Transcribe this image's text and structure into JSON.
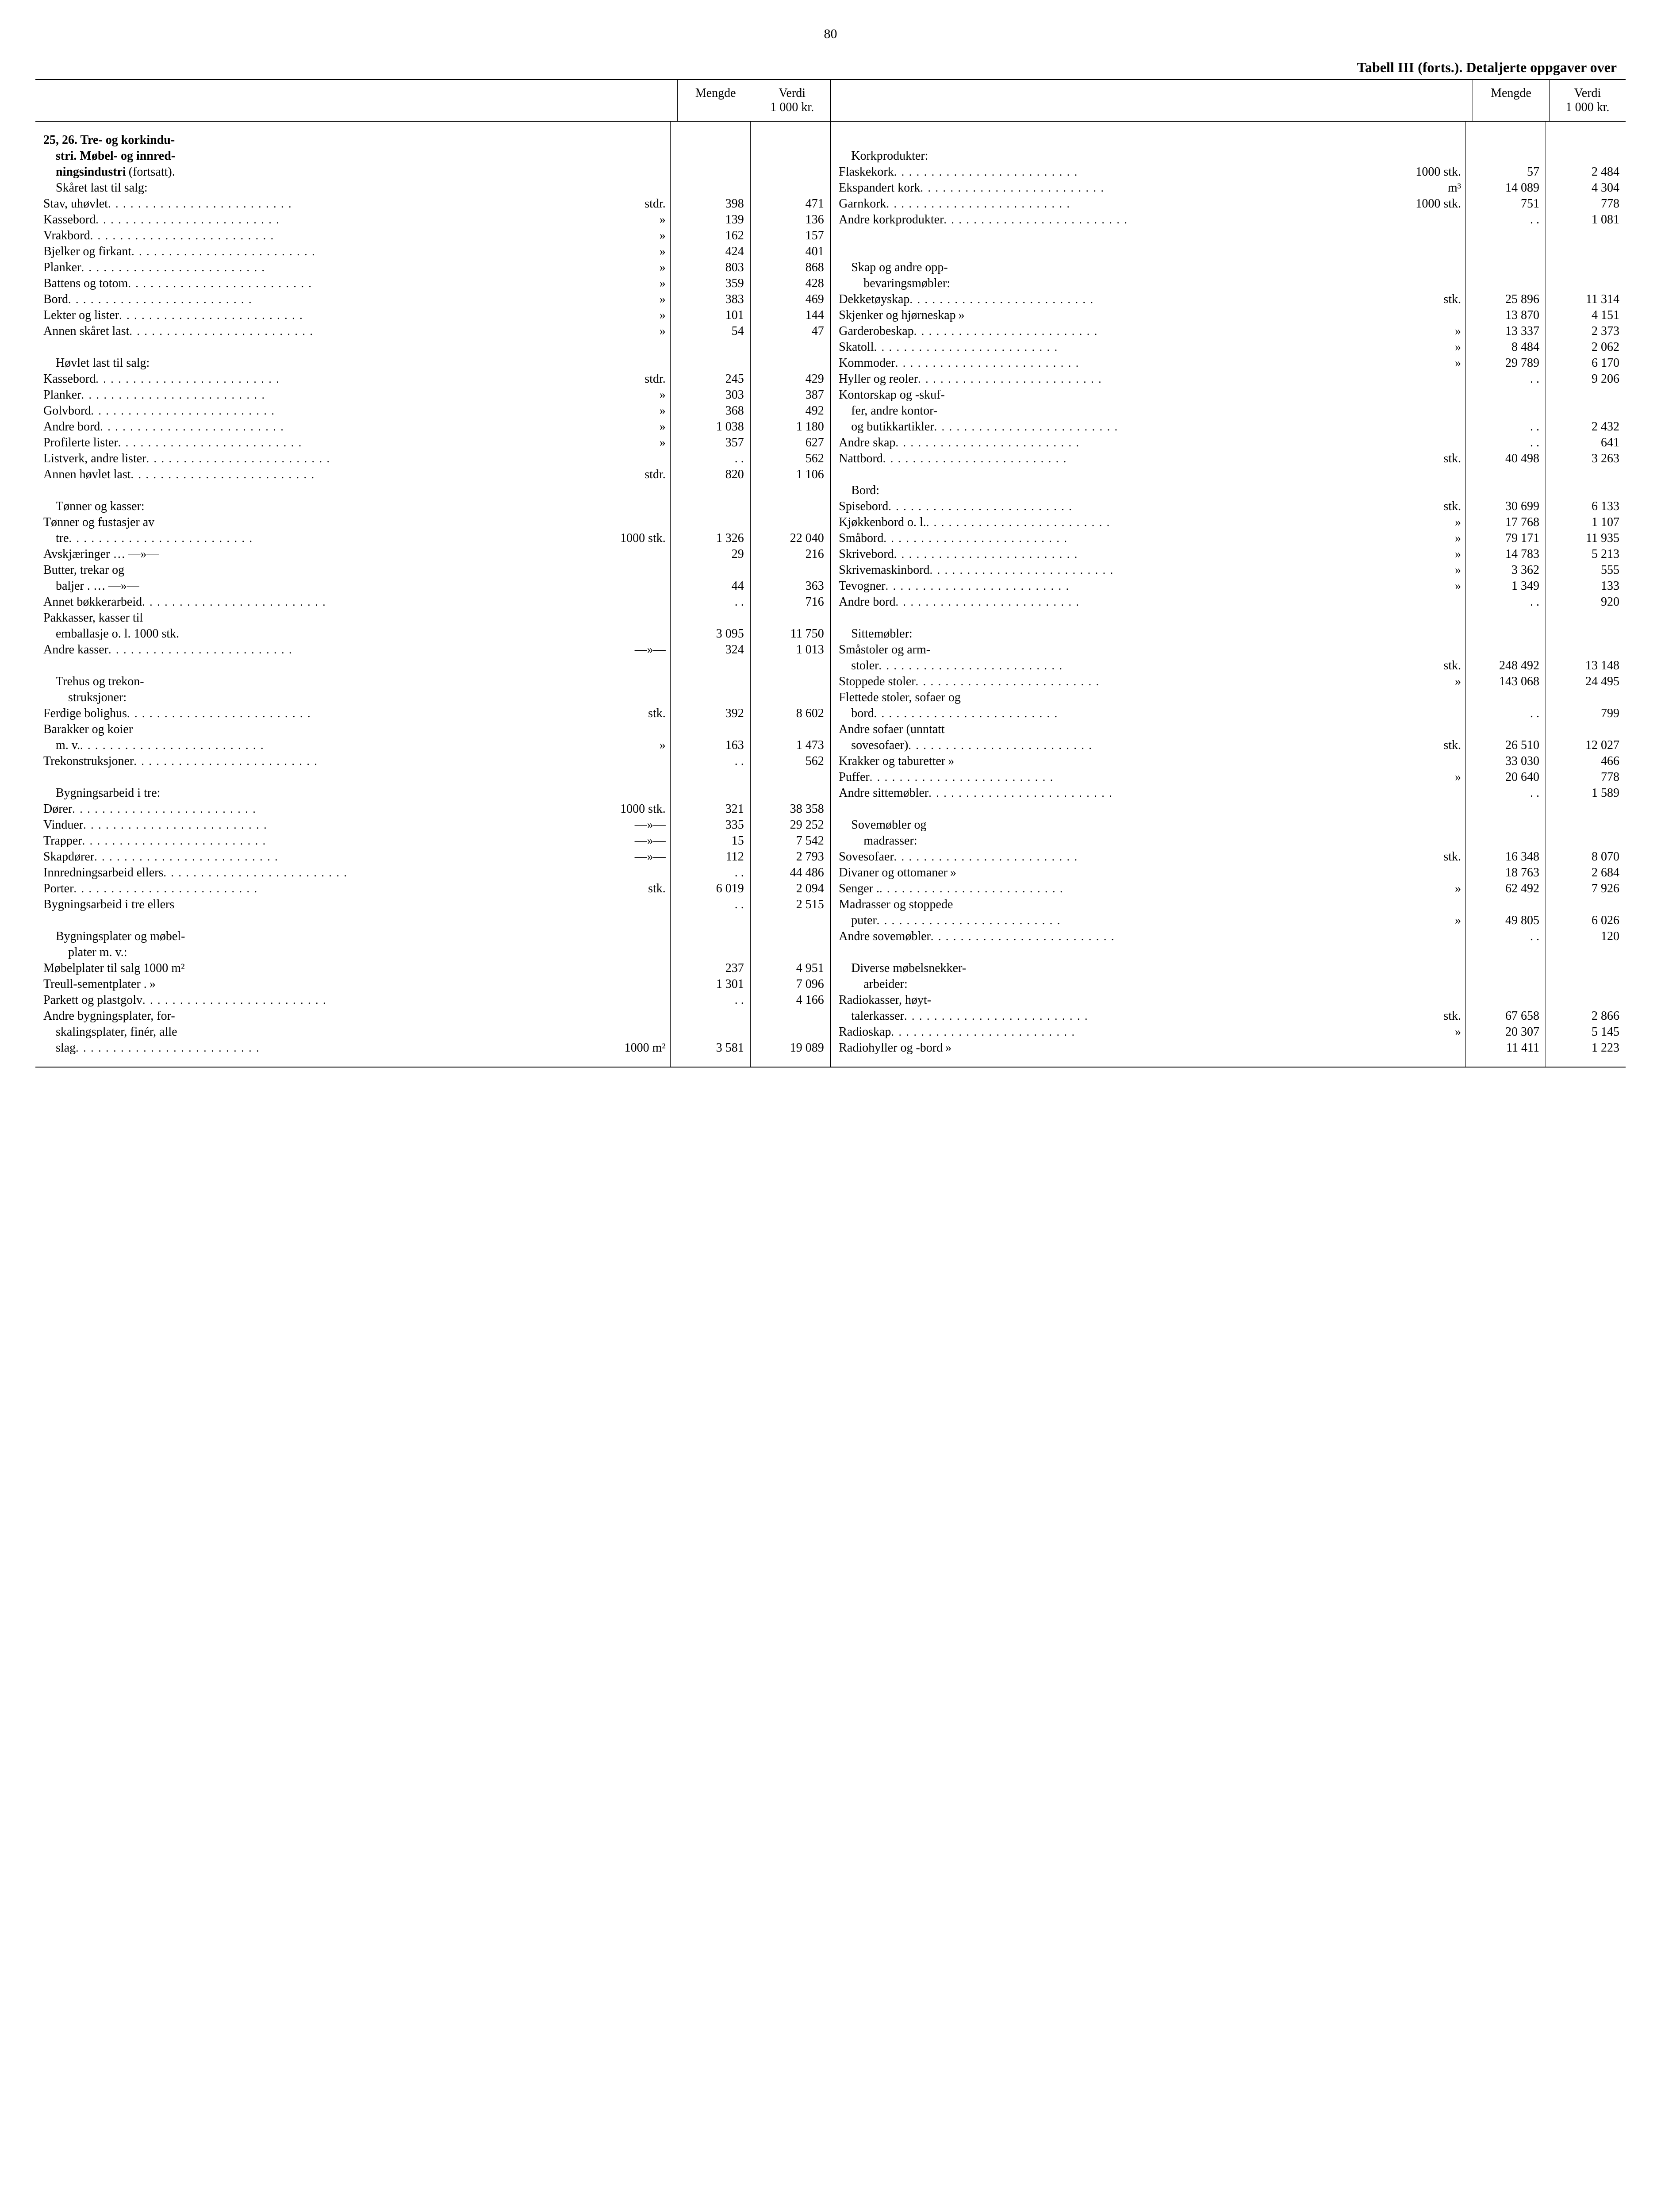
{
  "page_number": "80",
  "title": "Tabell III (forts.). Detaljerte oppgaver over",
  "headers": {
    "qty": "Mengde",
    "val_l1": "Verdi",
    "val_l2": "1 000 kr."
  },
  "left": [
    {
      "type": "head",
      "label": "25, 26. Tre- og korkindu-"
    },
    {
      "type": "head",
      "indent": 1,
      "label": "stri. Møbel- og innred-"
    },
    {
      "type": "head",
      "indent": 1,
      "label": "ningsindustri",
      "unit": "(fortsatt)."
    },
    {
      "indent": 1,
      "label": "Skåret last til salg:"
    },
    {
      "label": "Stav, uhøvlet",
      "dots": true,
      "unit": "stdr.",
      "q": "398",
      "v": "471"
    },
    {
      "label": "Kassebord",
      "dots": true,
      "unit": "»",
      "q": "139",
      "v": "136"
    },
    {
      "label": "Vrakbord",
      "dots": true,
      "unit": "»",
      "q": "162",
      "v": "157"
    },
    {
      "label": "Bjelker og firkant",
      "dots": true,
      "unit": "»",
      "q": "424",
      "v": "401"
    },
    {
      "label": "Planker",
      "dots": true,
      "unit": "»",
      "q": "803",
      "v": "868"
    },
    {
      "label": "Battens og totom",
      "dots": true,
      "unit": "»",
      "q": "359",
      "v": "428"
    },
    {
      "label": "Bord",
      "dots": true,
      "unit": "»",
      "q": "383",
      "v": "469"
    },
    {
      "label": "Lekter og lister",
      "dots": true,
      "unit": "»",
      "q": "101",
      "v": "144"
    },
    {
      "label": "Annen skåret last",
      "dots": true,
      "unit": "»",
      "q": "54",
      "v": "47"
    },
    {
      "type": "blank"
    },
    {
      "indent": 1,
      "label": "Høvlet last til salg:"
    },
    {
      "label": "Kassebord",
      "dots": true,
      "unit": "stdr.",
      "q": "245",
      "v": "429"
    },
    {
      "label": "Planker",
      "dots": true,
      "unit": "»",
      "q": "303",
      "v": "387"
    },
    {
      "label": "Golvbord",
      "dots": true,
      "unit": "»",
      "q": "368",
      "v": "492"
    },
    {
      "label": "Andre bord",
      "dots": true,
      "unit": "»",
      "q": "1 038",
      "v": "1 180"
    },
    {
      "label": "Profilerte lister",
      "dots": true,
      "unit": "»",
      "q": "357",
      "v": "627"
    },
    {
      "label": "Listverk, andre lister",
      "dots": true,
      "q": ". .",
      "v": "562"
    },
    {
      "label": "Annen høvlet last",
      "dots": true,
      "unit": "stdr.",
      "q": "820",
      "v": "1 106"
    },
    {
      "type": "blank"
    },
    {
      "indent": 1,
      "label": "Tønner og kasser:"
    },
    {
      "label": "Tønner og fustasjer av"
    },
    {
      "indent": 1,
      "label": "tre",
      "dots": true,
      "unit": "1000 stk.",
      "q": "1 326",
      "v": "22 040"
    },
    {
      "label": "Avskjæringer …",
      "unit": "—»—",
      "q": "29",
      "v": "216"
    },
    {
      "label": "Butter, trekar og"
    },
    {
      "indent": 1,
      "label": "baljer .   …",
      "unit": "—»—",
      "q": "44",
      "v": "363"
    },
    {
      "label": "Annet bøkkerarbeid",
      "dots": true,
      "q": ". .",
      "v": "716"
    },
    {
      "label": "Pakkasser, kasser til"
    },
    {
      "indent": 1,
      "label": "emballasje o. l. 1000 stk.",
      "q": "3 095",
      "v": "11 750"
    },
    {
      "label": "Andre kasser",
      "dots": true,
      "unit": "—»—",
      "q": "324",
      "v": "1 013"
    },
    {
      "type": "blank"
    },
    {
      "indent": 1,
      "label": "Trehus og trekon-"
    },
    {
      "indent": 2,
      "label": "struksjoner:"
    },
    {
      "label": "Ferdige bolighus",
      "dots": true,
      "unit": "stk.",
      "q": "392",
      "v": "8 602"
    },
    {
      "label": "Barakker og koier"
    },
    {
      "indent": 1,
      "label": "m. v.",
      "dots": true,
      "unit": "»",
      "q": "163",
      "v": "1 473"
    },
    {
      "label": "Trekonstruksjoner",
      "dots": true,
      "q": ". .",
      "v": "562"
    },
    {
      "type": "blank"
    },
    {
      "indent": 1,
      "label": "Bygningsarbeid i tre:"
    },
    {
      "label": "Dører",
      "dots": true,
      "unit": "1000 stk.",
      "q": "321",
      "v": "38 358"
    },
    {
      "label": "Vinduer",
      "dots": true,
      "unit": "—»—",
      "q": "335",
      "v": "29 252"
    },
    {
      "label": "Trapper",
      "dots": true,
      "unit": "—»—",
      "q": "15",
      "v": "7 542"
    },
    {
      "label": "Skapdører",
      "dots": true,
      "unit": "—»—",
      "q": "112",
      "v": "2 793"
    },
    {
      "label": "Innredningsarbeid ellers",
      "dots": true,
      "q": ". .",
      "v": "44 486"
    },
    {
      "label": "Porter",
      "dots": true,
      "unit": "stk.",
      "q": "6 019",
      "v": "2 094"
    },
    {
      "label": "Bygningsarbeid i tre ellers",
      "q": ". .",
      "v": "2 515"
    },
    {
      "type": "blank"
    },
    {
      "indent": 1,
      "label": "Bygningsplater og møbel-"
    },
    {
      "indent": 2,
      "label": "plater m. v.:"
    },
    {
      "label": "Møbelplater til salg 1000 m²",
      "q": "237",
      "v": "4 951"
    },
    {
      "label": "Treull-sementplater .",
      "unit": "»",
      "q": "1 301",
      "v": "7 096"
    },
    {
      "label": "Parkett og plastgolv",
      "dots": true,
      "q": ". .",
      "v": "4 166"
    },
    {
      "label": "Andre bygningsplater, for-"
    },
    {
      "indent": 1,
      "label": "skalingsplater, finér, alle"
    },
    {
      "indent": 1,
      "label": "slag",
      "dots": true,
      "unit": "1000 m²",
      "q": "3 581",
      "v": "19 089"
    }
  ],
  "right": [
    {
      "type": "blank"
    },
    {
      "indent": 1,
      "label": "Korkprodukter:"
    },
    {
      "label": "Flaskekork",
      "dots": true,
      "unit": "1000 stk.",
      "q": "57",
      "v": "2 484"
    },
    {
      "label": "Ekspandert kork",
      "dots": true,
      "unit": "m³",
      "q": "14 089",
      "v": "4 304"
    },
    {
      "label": "Garnkork",
      "dots": true,
      "unit": "1000 stk.",
      "q": "751",
      "v": "778"
    },
    {
      "label": "Andre korkprodukter",
      "dots": true,
      "q": ". .",
      "v": "1 081"
    },
    {
      "type": "blank"
    },
    {
      "type": "blank"
    },
    {
      "indent": 1,
      "label": "Skap og andre opp-"
    },
    {
      "indent": 2,
      "label": "bevaringsmøbler:"
    },
    {
      "label": "Dekketøyskap",
      "dots": true,
      "unit": "stk.",
      "q": "25 896",
      "v": "11 314"
    },
    {
      "label": "Skjenker og hjørneskap",
      "unit": "»",
      "q": "13 870",
      "v": "4 151"
    },
    {
      "label": "Garderobeskap",
      "dots": true,
      "unit": "»",
      "q": "13 337",
      "v": "2 373"
    },
    {
      "label": "Skatoll",
      "dots": true,
      "unit": "»",
      "q": "8 484",
      "v": "2 062"
    },
    {
      "label": "Kommoder",
      "dots": true,
      "unit": "»",
      "q": "29 789",
      "v": "6 170"
    },
    {
      "label": "Hyller og reoler",
      "dots": true,
      "q": ". .",
      "v": "9 206"
    },
    {
      "label": "Kontorskap og -skuf-"
    },
    {
      "indent": 1,
      "label": "fer, andre kontor-"
    },
    {
      "indent": 1,
      "label": "og butikkartikler",
      "dots": true,
      "q": ". .",
      "v": "2 432"
    },
    {
      "label": "Andre skap",
      "dots": true,
      "q": ". .",
      "v": "641"
    },
    {
      "label": "Nattbord",
      "dots": true,
      "unit": "stk.",
      "q": "40 498",
      "v": "3 263"
    },
    {
      "type": "blank"
    },
    {
      "indent": 1,
      "label": "Bord:"
    },
    {
      "label": "Spisebord",
      "dots": true,
      "unit": "stk.",
      "q": "30 699",
      "v": "6 133"
    },
    {
      "label": "Kjøkkenbord o. l.",
      "dots": true,
      "unit": "»",
      "q": "17 768",
      "v": "1 107"
    },
    {
      "label": "Småbord",
      "dots": true,
      "unit": "»",
      "q": "79 171",
      "v": "11 935"
    },
    {
      "label": "Skrivebord",
      "dots": true,
      "unit": "»",
      "q": "14 783",
      "v": "5 213"
    },
    {
      "label": "Skrivemaskinbord",
      "dots": true,
      "unit": "»",
      "q": "3 362",
      "v": "555"
    },
    {
      "label": "Tevogner",
      "dots": true,
      "unit": "»",
      "q": "1 349",
      "v": "133"
    },
    {
      "label": "Andre bord",
      "dots": true,
      "q": ". .",
      "v": "920"
    },
    {
      "type": "blank"
    },
    {
      "indent": 1,
      "label": "Sittemøbler:"
    },
    {
      "label": "Småstoler og arm-"
    },
    {
      "indent": 1,
      "label": "stoler",
      "dots": true,
      "unit": "stk.",
      "q": "248 492",
      "v": "13 148"
    },
    {
      "label": "Stoppede stoler",
      "dots": true,
      "unit": "»",
      "q": "143 068",
      "v": "24 495"
    },
    {
      "label": "Flettede stoler, sofaer og"
    },
    {
      "indent": 1,
      "label": "bord",
      "dots": true,
      "q": ". .",
      "v": "799"
    },
    {
      "label": "Andre sofaer (unntatt"
    },
    {
      "indent": 1,
      "label": "sovesofaer)",
      "dots": true,
      "unit": "stk.",
      "q": "26 510",
      "v": "12 027"
    },
    {
      "label": "Krakker og taburetter",
      "unit": "»",
      "q": "33 030",
      "v": "466"
    },
    {
      "label": "Puffer",
      "dots": true,
      "unit": "»",
      "q": "20 640",
      "v": "778"
    },
    {
      "label": "Andre sittemøbler",
      "dots": true,
      "q": ". .",
      "v": "1 589"
    },
    {
      "type": "blank"
    },
    {
      "indent": 1,
      "label": "Sovemøbler og"
    },
    {
      "indent": 2,
      "label": "madrasser:"
    },
    {
      "label": "Sovesofaer",
      "dots": true,
      "unit": "stk.",
      "q": "16 348",
      "v": "8 070"
    },
    {
      "label": "Divaner og ottomaner",
      "unit": "»",
      "q": "18 763",
      "v": "2 684"
    },
    {
      "label": "Senger .",
      "dots": true,
      "unit": "»",
      "q": "62 492",
      "v": "7 926"
    },
    {
      "label": "Madrasser og stoppede"
    },
    {
      "indent": 1,
      "label": "puter",
      "dots": true,
      "unit": "»",
      "q": "49 805",
      "v": "6 026"
    },
    {
      "label": "Andre sovemøbler",
      "dots": true,
      "q": ". .",
      "v": "120"
    },
    {
      "type": "blank"
    },
    {
      "indent": 1,
      "label": "Diverse møbelsnekker-"
    },
    {
      "indent": 2,
      "label": "arbeider:"
    },
    {
      "label": "Radiokasser, høyt-"
    },
    {
      "indent": 1,
      "label": "talerkasser",
      "dots": true,
      "unit": "stk.",
      "q": "67 658",
      "v": "2 866"
    },
    {
      "label": "Radioskap",
      "dots": true,
      "unit": "»",
      "q": "20 307",
      "v": "5 145"
    },
    {
      "label": "Radiohyller og -bord",
      "unit": "»",
      "q": "11 411",
      "v": "1 223"
    }
  ]
}
